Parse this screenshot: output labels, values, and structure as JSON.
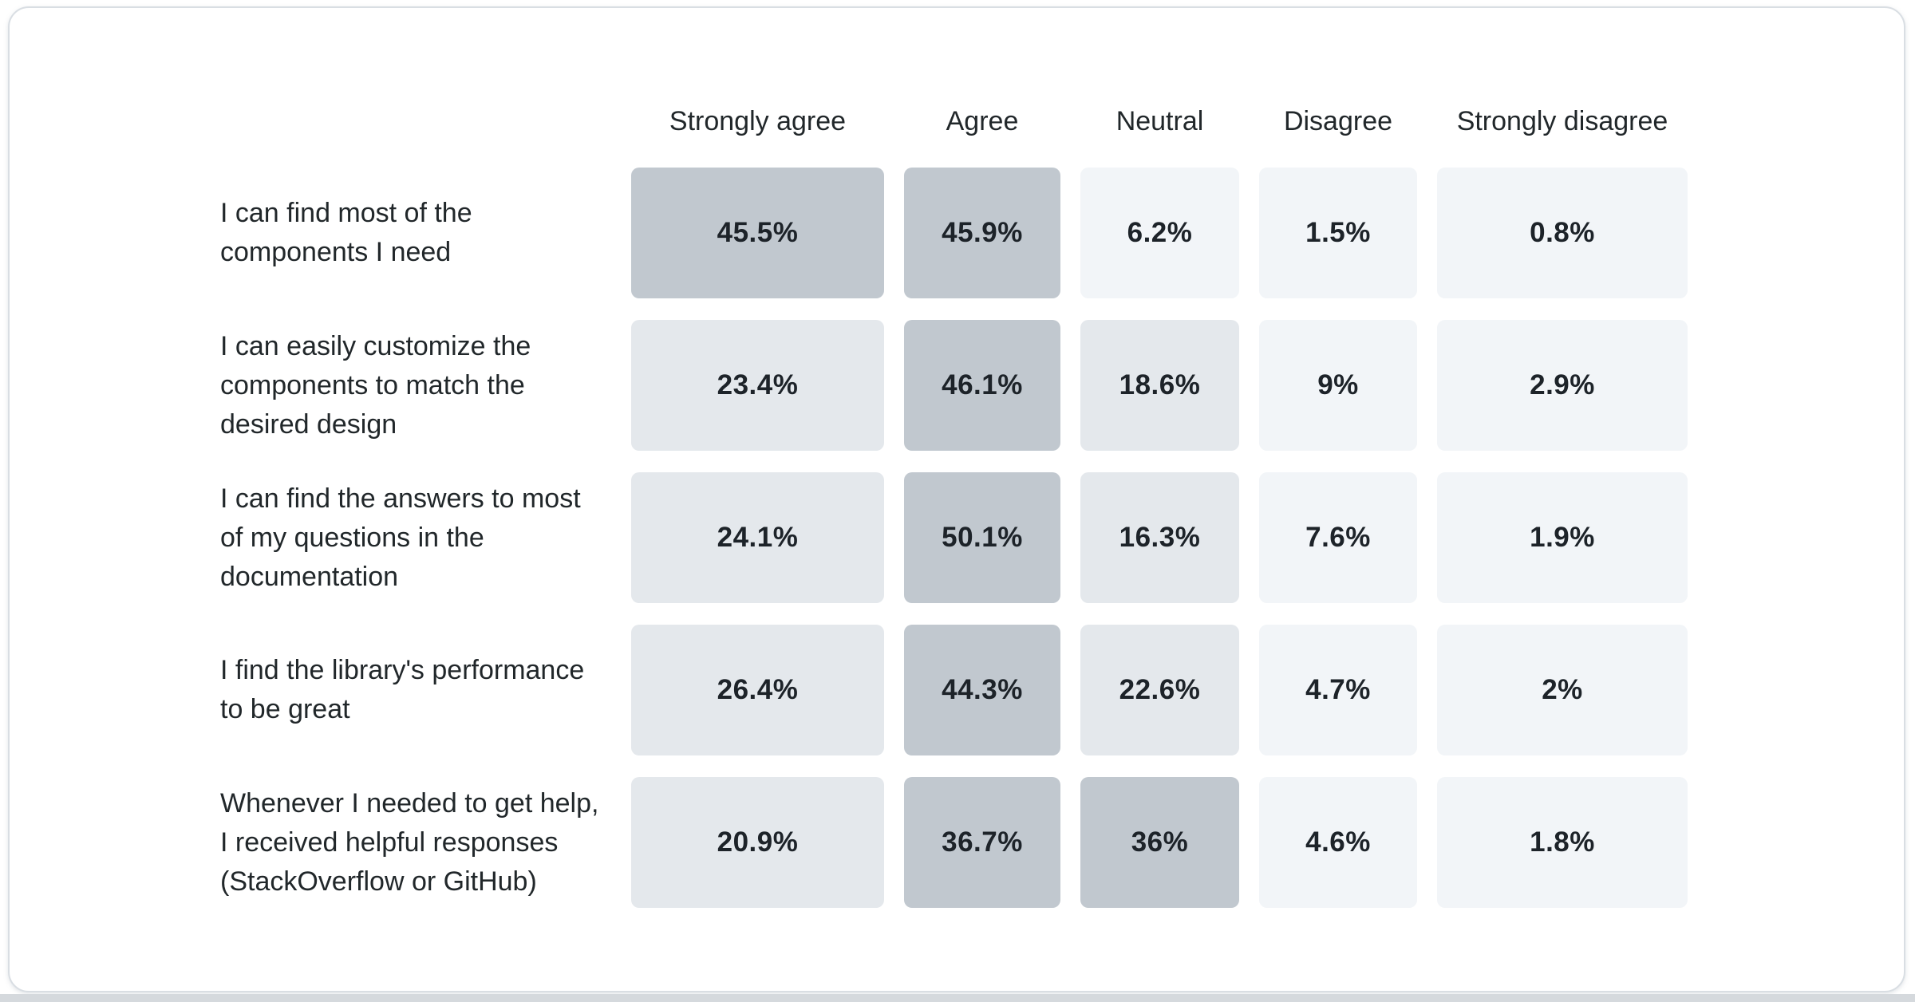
{
  "chart_data": {
    "type": "heatmap",
    "title": "",
    "legend_position": "none",
    "columns": [
      "Strongly agree",
      "Agree",
      "Neutral",
      "Disagree",
      "Strongly disagree"
    ],
    "rows": [
      {
        "label": "I can find most of the components I need",
        "values": [
          45.5,
          45.9,
          6.2,
          1.5,
          0.8
        ],
        "labels": [
          "45.5%",
          "45.9%",
          "6.2%",
          "1.5%",
          "0.8%"
        ]
      },
      {
        "label": "I can easily customize the components to match the desired design",
        "values": [
          23.4,
          46.1,
          18.6,
          9,
          2.9
        ],
        "labels": [
          "23.4%",
          "46.1%",
          "18.6%",
          "9%",
          "2.9%"
        ]
      },
      {
        "label": "I can find the answers to most of my questions in the documentation",
        "values": [
          24.1,
          50.1,
          16.3,
          7.6,
          1.9
        ],
        "labels": [
          "24.1%",
          "50.1%",
          "16.3%",
          "7.6%",
          "1.9%"
        ]
      },
      {
        "label": "I find the library's performance to be great",
        "values": [
          26.4,
          44.3,
          22.6,
          4.7,
          2
        ],
        "labels": [
          "26.4%",
          "44.3%",
          "22.6%",
          "4.7%",
          "2%"
        ]
      },
      {
        "label": "Whenever I needed to get help, I received helpful responses (StackOverflow or GitHub)",
        "values": [
          20.9,
          36.7,
          36,
          4.6,
          1.8
        ],
        "labels": [
          "20.9%",
          "36.7%",
          "36%",
          "4.6%",
          "1.8%"
        ]
      }
    ],
    "color_scale": {
      "high_min": 30,
      "mid_min": 10,
      "high_color": "#c1c8cf",
      "mid_color": "#e4e8ec",
      "low_color": "#f2f5f8"
    }
  },
  "colors": {
    "header_text": "#21272a",
    "label_text": "#21272a",
    "value_text": "#1d2329",
    "card_background": "#ffffff",
    "card_border": "#d9dee3",
    "bottom_strip": "#d5d9dd"
  }
}
